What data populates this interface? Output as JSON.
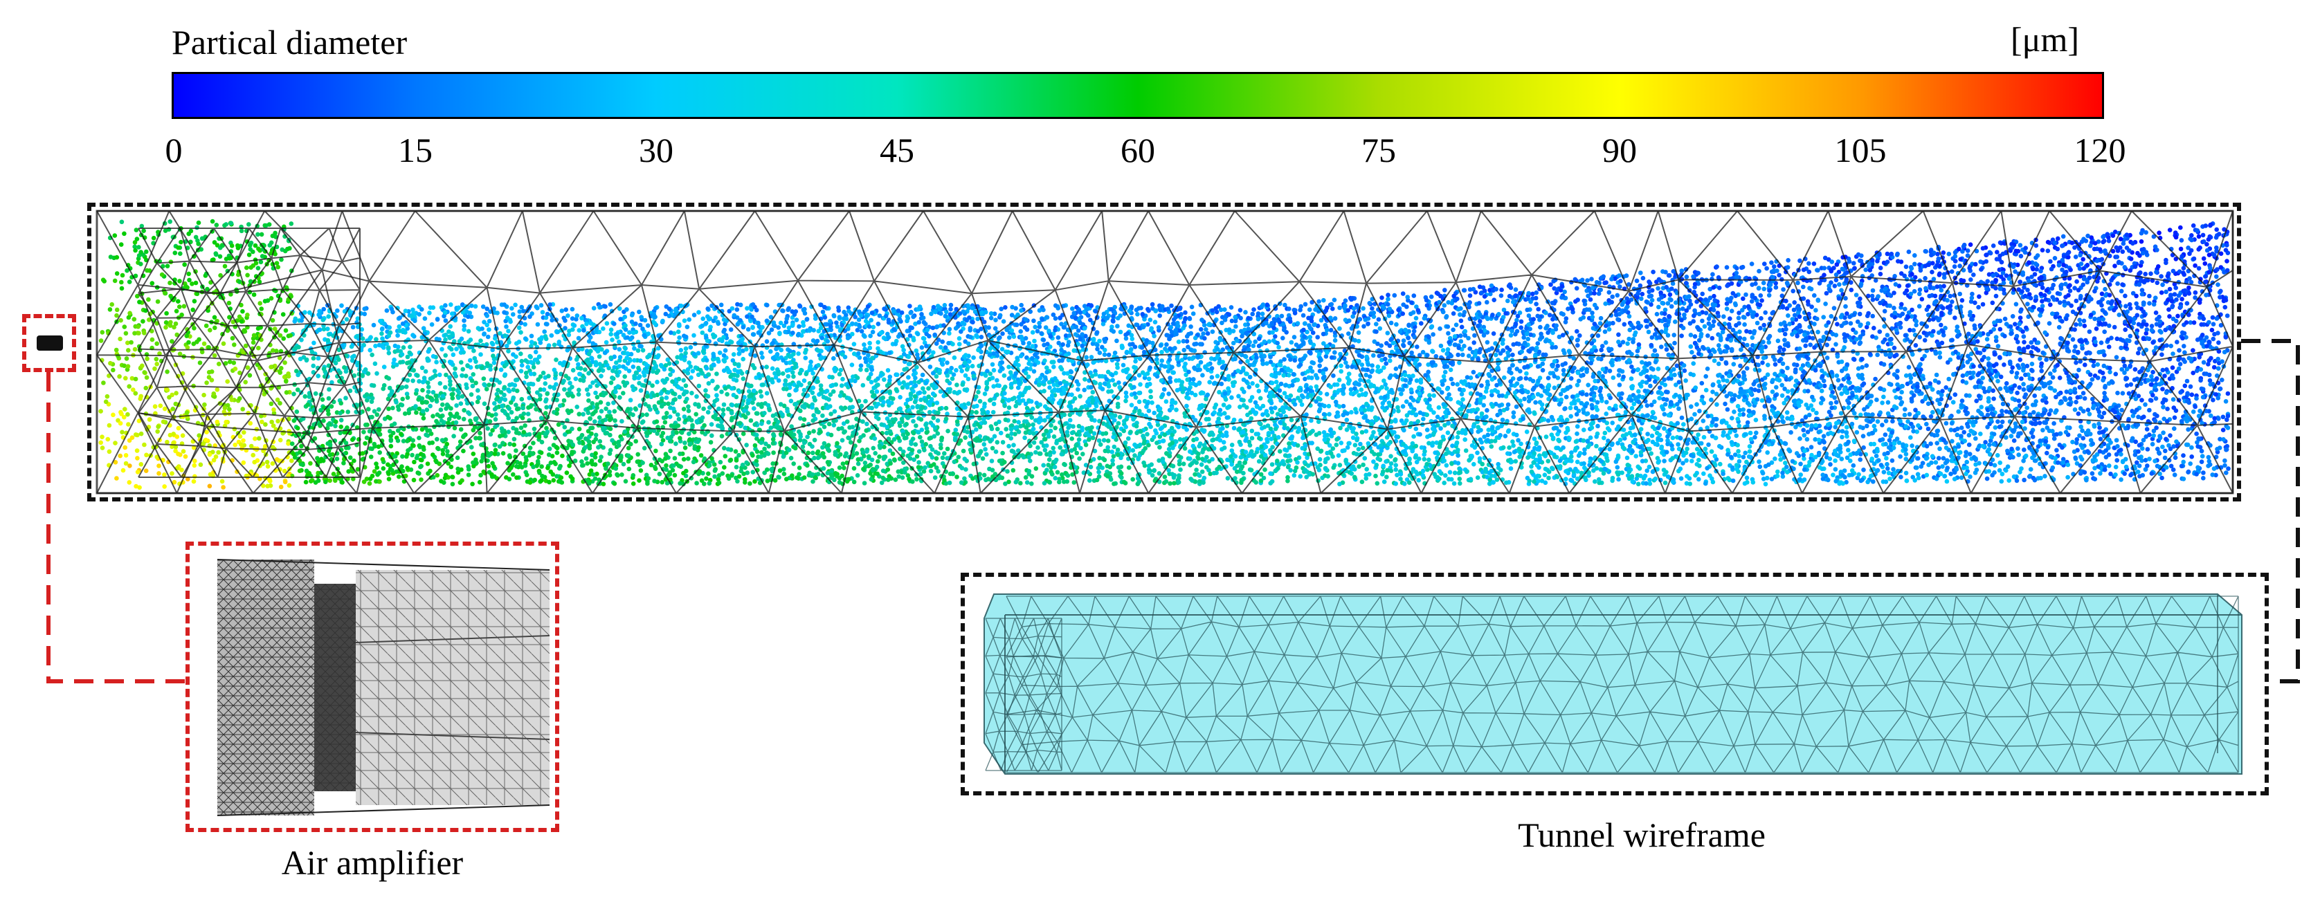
{
  "colorbar": {
    "title": "Partical diameter",
    "unit": "[μm]",
    "ticks": [
      "0",
      "15",
      "30",
      "45",
      "60",
      "75",
      "90",
      "105",
      "120"
    ],
    "range": [
      0,
      120
    ],
    "colors": [
      "#0000ff",
      "#00ccff",
      "#00cc00",
      "#ffff00",
      "#ff0000"
    ]
  },
  "labels": {
    "air_amplifier": "Air amplifier",
    "tunnel_wireframe": "Tunnel wireframe"
  },
  "colors": {
    "frame_black": "#111111",
    "frame_red": "#d62020",
    "tunnel_fill": "#9eecf2",
    "mesh_line": "#1a1a1a"
  }
}
